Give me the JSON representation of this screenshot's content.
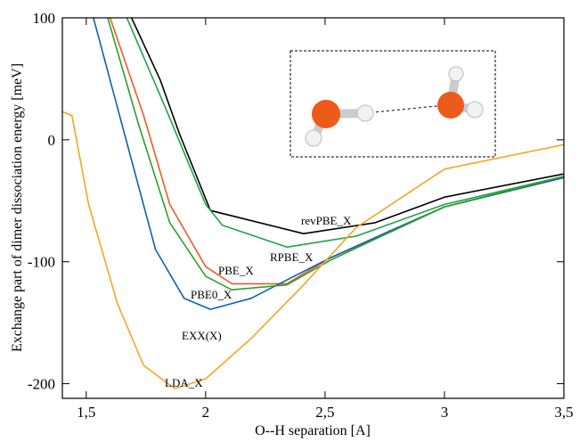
{
  "chart_data": {
    "type": "line",
    "xlabel": "O--H separation [A]",
    "ylabel": "Exchange part of dimer dissociation energy [meV]",
    "xlim": [
      1.4,
      3.5
    ],
    "ylim": [
      -212,
      100
    ],
    "xticks": [
      {
        "value": 1.5,
        "label": "1,5"
      },
      2,
      {
        "value": 2.5,
        "label": "2,5"
      },
      3,
      {
        "value": 3.5,
        "label": "3,5"
      }
    ],
    "yticks": [
      -200,
      -100,
      0,
      100
    ],
    "series": [
      {
        "name": "revPBE_X",
        "color": "#000000",
        "x": [
          1.69,
          1.81,
          1.89,
          2.02,
          2.41,
          2.71,
          3.0,
          3.5
        ],
        "values": [
          100,
          49,
          5,
          -58,
          -77,
          -68,
          -47,
          -28
        ]
      },
      {
        "name": "RPBE_X",
        "color": "#1fa34a",
        "x": [
          1.67,
          1.83,
          2.0,
          2.07,
          2.34,
          2.63,
          3.0,
          3.5
        ],
        "values": [
          100,
          27,
          -53,
          -70,
          -88,
          -79,
          -53,
          -30
        ]
      },
      {
        "name": "PBE_X",
        "color": "#f05a28",
        "x": [
          1.6,
          1.74,
          1.85,
          2.0,
          2.11,
          2.34,
          2.52,
          2.78,
          3.0,
          3.5
        ],
        "values": [
          100,
          20,
          -53,
          -104,
          -118,
          -118,
          -97,
          -75,
          -55,
          -31
        ]
      },
      {
        "name": "PBE0_X",
        "color": "#1060b0",
        "x": [
          1.53,
          1.66,
          1.79,
          1.91,
          2.02,
          2.19,
          2.37,
          2.52,
          2.78,
          3.0,
          3.5
        ],
        "values": [
          100,
          5,
          -90,
          -130,
          -139,
          -130,
          -112,
          -97,
          -74,
          -55,
          -31
        ]
      },
      {
        "name": "EXX(X)",
        "color": "#2ca02c",
        "x": [
          1.59,
          1.72,
          1.85,
          2.0,
          2.11,
          2.34,
          2.52,
          2.78,
          3.0,
          3.5
        ],
        "values": [
          100,
          12,
          -68,
          -112,
          -123,
          -119,
          -99,
          -75,
          -55,
          -30
        ]
      },
      {
        "name": "LDA_X",
        "color": "#f5a623",
        "x": [
          1.4,
          1.44,
          1.51,
          1.63,
          1.74,
          1.87,
          2.0,
          2.19,
          2.41,
          2.63,
          3.0,
          3.5
        ],
        "values": [
          23,
          20,
          -53,
          -134,
          -185,
          -204,
          -196,
          -163,
          -119,
          -72,
          -24,
          -4
        ]
      }
    ]
  }
}
